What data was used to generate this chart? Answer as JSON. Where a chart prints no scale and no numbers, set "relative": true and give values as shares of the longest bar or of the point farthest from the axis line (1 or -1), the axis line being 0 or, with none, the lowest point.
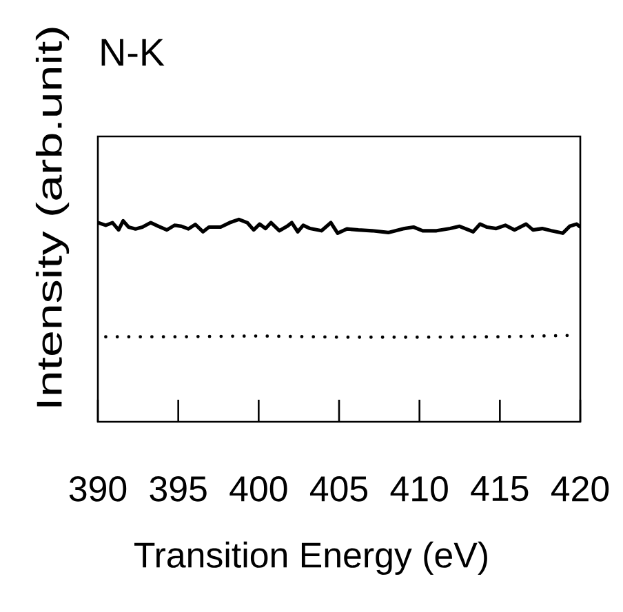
{
  "chart_data": {
    "type": "line",
    "title": "N-K",
    "xlabel": "Transition Energy (eV)",
    "ylabel": "Intensity (arb.unit)",
    "relative": true,
    "xlim": [
      390,
      420
    ],
    "xticks": [
      390,
      395,
      400,
      405,
      410,
      415,
      420
    ],
    "grid": false,
    "marker": "none",
    "series": [
      {
        "color": "#000000",
        "line_style": "solid",
        "x": [
          390,
          390.49,
          390.91,
          391.29,
          391.57,
          391.91,
          392.34,
          392.77,
          393.29,
          393.77,
          394.29,
          394.77,
          395.2,
          395.63,
          396.06,
          396.54,
          396.91,
          397.63,
          398.2,
          398.77,
          399.29,
          399.69,
          400.06,
          400.43,
          400.77,
          401.29,
          401.77,
          402.06,
          402.43,
          402.77,
          403.2,
          403.91,
          404.49,
          404.91,
          405.49,
          406.2,
          407.06,
          408.06,
          409.06,
          409.63,
          410.2,
          411.06,
          411.91,
          412.49,
          413.34,
          413.77,
          414.2,
          414.77,
          415.34,
          415.91,
          416.63,
          417.06,
          417.63,
          418.2,
          418.91,
          419.34,
          419.77,
          420
        ],
        "values": [
          0.984,
          0.971,
          0.984,
          0.948,
          0.993,
          0.962,
          0.953,
          0.962,
          0.984,
          0.966,
          0.948,
          0.971,
          0.966,
          0.953,
          0.975,
          0.939,
          0.962,
          0.962,
          0.984,
          1.0,
          0.984,
          0.948,
          0.977,
          0.955,
          0.984,
          0.944,
          0.966,
          0.984,
          0.939,
          0.971,
          0.955,
          0.944,
          0.984,
          0.932,
          0.953,
          0.948,
          0.944,
          0.935,
          0.955,
          0.962,
          0.944,
          0.944,
          0.955,
          0.966,
          0.939,
          0.977,
          0.962,
          0.955,
          0.971,
          0.948,
          0.977,
          0.948,
          0.955,
          0.944,
          0.932,
          0.966,
          0.977,
          0.962
        ]
      },
      {
        "color": "#000000",
        "line_style": "dotted",
        "x": [
          390.49,
          395,
          400,
          405,
          410,
          415,
          419.77
        ],
        "values": [
          0.42,
          0.42,
          0.424,
          0.418,
          0.418,
          0.42,
          0.427
        ]
      }
    ]
  }
}
